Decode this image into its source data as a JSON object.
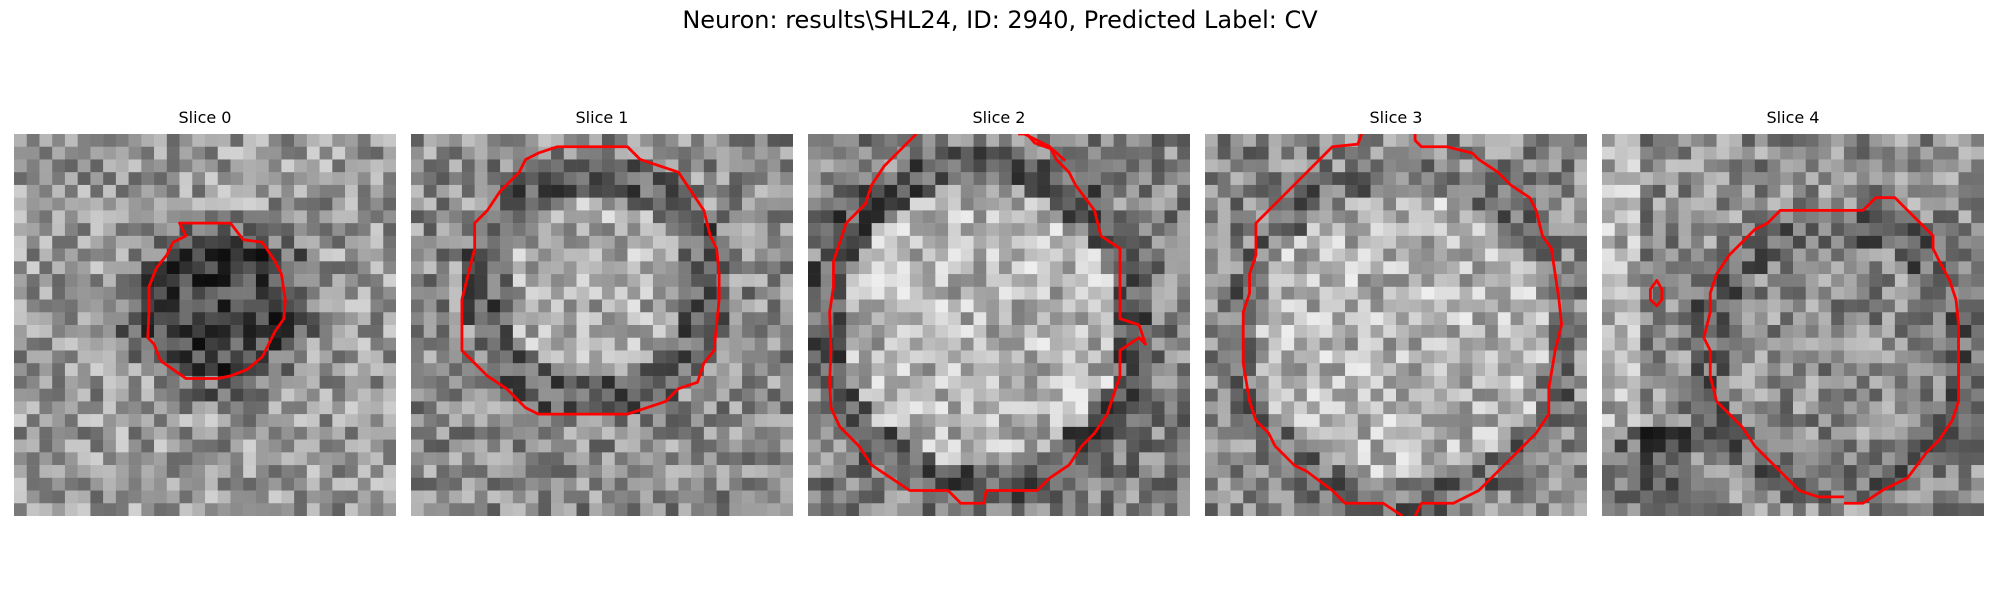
{
  "figure": {
    "title": "Neuron: results\\SHL24, ID: 2940, Predicted Label: CV"
  },
  "panels": [
    {
      "title": "Slice 0"
    },
    {
      "title": "Slice 1"
    },
    {
      "title": "Slice 2"
    },
    {
      "title": "Slice 3"
    },
    {
      "title": "Slice 4"
    }
  ],
  "colors": {
    "contour": "#ff0000",
    "background": "#ffffff"
  }
}
